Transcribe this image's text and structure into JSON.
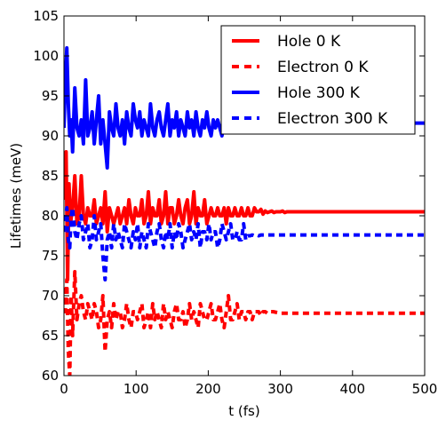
{
  "chart_data": {
    "type": "line",
    "title": "",
    "xlabel": "t (fs)",
    "ylabel": "Lifetimes (meV)",
    "xlim": [
      0,
      500
    ],
    "ylim": [
      60,
      105
    ],
    "xticks": [
      0,
      100,
      200,
      300,
      400,
      500
    ],
    "yticks": [
      60,
      65,
      70,
      75,
      80,
      85,
      90,
      95,
      100,
      105
    ],
    "grid": false,
    "legend_position": "top-right",
    "series": [
      {
        "name": "Hole 0 K",
        "color": "#ff0000",
        "style": "solid",
        "x": [
          0,
          3,
          5,
          7,
          9,
          12,
          15,
          18,
          21,
          24,
          27,
          30,
          33,
          36,
          39,
          42,
          45,
          48,
          51,
          54,
          57,
          60,
          63,
          66,
          69,
          72,
          75,
          78,
          81,
          84,
          87,
          90,
          93,
          96,
          99,
          102,
          105,
          108,
          111,
          114,
          117,
          120,
          123,
          126,
          129,
          132,
          135,
          138,
          141,
          144,
          147,
          150,
          153,
          156,
          159,
          162,
          165,
          168,
          171,
          174,
          177,
          180,
          183,
          186,
          189,
          192,
          195,
          198,
          201,
          204,
          207,
          210,
          213,
          216,
          219,
          222,
          225,
          228,
          231,
          234,
          237,
          240,
          243,
          246,
          249,
          252,
          255,
          258,
          261,
          264,
          267,
          270,
          273,
          276,
          279,
          282,
          285,
          288,
          291,
          294,
          297,
          300,
          303,
          306,
          309,
          312,
          315,
          318,
          321,
          324,
          327,
          330,
          336,
          342,
          348,
          354,
          360,
          370,
          380,
          400,
          500
        ],
        "y": [
          82,
          88,
          72,
          84,
          79,
          81,
          85,
          79,
          80,
          85,
          80,
          79,
          81,
          80,
          80,
          82,
          79,
          80,
          81,
          79,
          83,
          78,
          81,
          80,
          79,
          80,
          81,
          79,
          80,
          81,
          79,
          82,
          80,
          79,
          81,
          80,
          80,
          82,
          79,
          80,
          83,
          79,
          81,
          80,
          80,
          82,
          79,
          80,
          83,
          79,
          81,
          81,
          79,
          80,
          82,
          80,
          79,
          81,
          82,
          79,
          80,
          83,
          79,
          81,
          80,
          80,
          82,
          79,
          80,
          81,
          80,
          80,
          81,
          80,
          80,
          81,
          79,
          81,
          80,
          80,
          81,
          80,
          80,
          81,
          80,
          80,
          81,
          80,
          80,
          81,
          80.5,
          80.5,
          80.8,
          80.2,
          80.6,
          80.4,
          80.5,
          80.6,
          80.4,
          80.5,
          80.5,
          80.5,
          80.6,
          80.4,
          80.5,
          80.5,
          80.5,
          80.5,
          80.5,
          80.5,
          80.5,
          80.5,
          80.5,
          80.5,
          80.5,
          80.5,
          80.5,
          80.5,
          80.5,
          80.5,
          80.5
        ]
      },
      {
        "name": "Electron 0 K",
        "color": "#ff0000",
        "style": "dashed",
        "x": [
          0,
          2,
          4,
          6,
          8,
          10,
          12,
          15,
          18,
          21,
          24,
          27,
          30,
          33,
          36,
          39,
          42,
          45,
          48,
          51,
          54,
          57,
          60,
          63,
          66,
          69,
          72,
          75,
          78,
          81,
          84,
          87,
          90,
          93,
          96,
          99,
          102,
          105,
          108,
          111,
          114,
          117,
          120,
          123,
          126,
          129,
          132,
          135,
          138,
          141,
          144,
          147,
          150,
          153,
          156,
          159,
          162,
          165,
          168,
          171,
          174,
          177,
          180,
          183,
          186,
          189,
          192,
          195,
          198,
          201,
          204,
          207,
          210,
          213,
          216,
          219,
          222,
          225,
          228,
          231,
          234,
          237,
          240,
          243,
          246,
          249,
          252,
          255,
          258,
          261,
          264,
          267,
          270,
          273,
          276,
          279,
          282,
          285,
          290,
          300,
          320,
          340,
          400,
          500
        ],
        "y": [
          71,
          68,
          72,
          63,
          60,
          70,
          65,
          73,
          67,
          69,
          70,
          68,
          67,
          69,
          68,
          67,
          69,
          68,
          66,
          67,
          70,
          63,
          67,
          68,
          66,
          69,
          67,
          68,
          68,
          66,
          67,
          69,
          67,
          66,
          68,
          68,
          67,
          68,
          69,
          66,
          67,
          68,
          66,
          69,
          67,
          68,
          67,
          66,
          69,
          67,
          68,
          67,
          66,
          68,
          69,
          67,
          67,
          68,
          66,
          67,
          69,
          67,
          68,
          67,
          66,
          69,
          68,
          67,
          67,
          68,
          69,
          67,
          67,
          68,
          69,
          67,
          66,
          68,
          70,
          67,
          67,
          68,
          69,
          67,
          68,
          68,
          67,
          68,
          68,
          67,
          68,
          68,
          68,
          67.5,
          68,
          68,
          67.8,
          68,
          68,
          67.8,
          67.8,
          67.8,
          67.8,
          67.8
        ]
      },
      {
        "name": "Hole 300 K",
        "color": "#0000ff",
        "style": "solid",
        "x": [
          0,
          2,
          4,
          6,
          8,
          10,
          12,
          15,
          18,
          21,
          24,
          27,
          30,
          33,
          36,
          39,
          42,
          45,
          48,
          51,
          54,
          57,
          60,
          63,
          66,
          69,
          72,
          75,
          78,
          81,
          84,
          87,
          90,
          93,
          96,
          99,
          102,
          105,
          108,
          111,
          114,
          117,
          120,
          123,
          126,
          129,
          132,
          135,
          138,
          141,
          144,
          147,
          150,
          153,
          156,
          159,
          162,
          165,
          168,
          171,
          174,
          177,
          180,
          183,
          186,
          189,
          192,
          195,
          198,
          201,
          204,
          207,
          210,
          213,
          216,
          219,
          222,
          225,
          228,
          231,
          234,
          237,
          240,
          243,
          246,
          249,
          252,
          255,
          258,
          261,
          264,
          267,
          270,
          273,
          276,
          279,
          282,
          285,
          290,
          300,
          320,
          350,
          400,
          500
        ],
        "y": [
          91,
          97,
          101,
          94,
          90,
          92,
          88,
          96,
          91,
          90,
          92,
          89,
          97,
          90,
          91,
          93,
          89,
          92,
          95,
          89,
          92,
          89,
          86,
          93,
          91,
          90,
          94,
          91,
          90,
          92,
          89,
          93,
          91,
          90,
          94,
          92,
          91,
          93,
          90,
          92,
          91,
          90,
          94,
          91,
          90,
          92,
          93,
          91,
          90,
          92,
          94,
          90,
          92,
          91,
          93,
          90,
          92,
          91,
          90,
          93,
          91,
          92,
          90,
          93,
          91,
          90,
          92,
          91,
          93,
          91,
          90,
          92,
          91,
          92,
          91,
          90,
          92,
          91,
          91,
          92,
          91,
          91,
          92,
          91,
          91,
          92,
          91,
          91.5,
          91.5,
          91.6,
          91.5,
          91.6,
          91.5,
          91.6,
          91.6,
          91.6,
          91.6,
          91.6,
          91.6,
          91.6,
          91.6,
          91.6,
          91.6,
          91.6
        ]
      },
      {
        "name": "Electron 300 K",
        "color": "#0000ff",
        "style": "dashed",
        "x": [
          0,
          2,
          4,
          6,
          8,
          10,
          12,
          15,
          18,
          21,
          24,
          27,
          30,
          33,
          36,
          39,
          42,
          45,
          48,
          51,
          54,
          57,
          60,
          63,
          66,
          69,
          72,
          75,
          78,
          81,
          84,
          87,
          90,
          93,
          96,
          99,
          102,
          105,
          108,
          111,
          114,
          117,
          120,
          123,
          126,
          129,
          132,
          135,
          138,
          141,
          144,
          147,
          150,
          153,
          156,
          159,
          162,
          165,
          168,
          171,
          174,
          177,
          180,
          183,
          186,
          189,
          192,
          195,
          198,
          201,
          204,
          207,
          210,
          213,
          216,
          219,
          222,
          225,
          228,
          231,
          234,
          237,
          240,
          243,
          246,
          249,
          252,
          255,
          258,
          261,
          264,
          267,
          270,
          273,
          276,
          279,
          282,
          285,
          290,
          300,
          320,
          350,
          400,
          500
        ],
        "y": [
          78,
          79,
          81,
          77,
          76,
          80,
          81,
          78,
          77,
          79,
          80,
          77,
          78,
          79,
          76,
          77,
          80,
          77,
          78,
          79,
          75,
          72,
          77,
          78,
          76,
          79,
          77,
          78,
          77,
          76,
          79,
          78,
          77,
          76,
          78,
          77,
          79,
          76,
          78,
          77,
          76,
          79,
          78,
          77,
          76,
          78,
          79,
          77,
          76,
          78,
          77,
          79,
          76,
          78,
          77,
          79,
          78,
          76,
          77,
          78,
          79,
          77,
          78,
          77,
          79,
          76,
          78,
          78,
          77,
          79,
          77,
          78,
          78,
          76,
          77,
          79,
          78,
          77,
          78,
          79,
          77,
          77,
          78,
          77,
          77,
          79,
          77,
          77.5,
          77.5,
          77.6,
          77.5,
          77.6,
          77.5,
          77.6,
          77.6,
          77.6,
          77.6,
          77.6,
          77.6,
          77.6,
          77.6,
          77.6,
          77.6,
          77.6
        ]
      }
    ]
  }
}
